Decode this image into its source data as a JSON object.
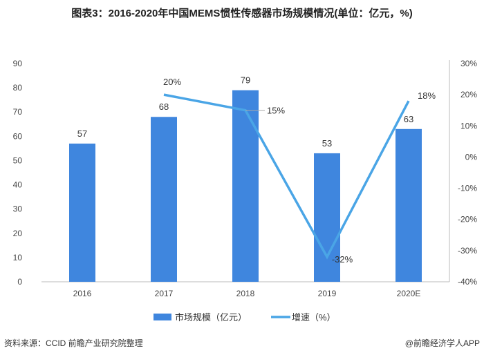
{
  "title": "图表3：2016-2020年中国MEMS惯性传感器市场规模情况(单位：亿元，%)",
  "source": "资料来源：CCID 前瞻产业研究院整理",
  "credit": "@前瞻经济学人APP",
  "colors": {
    "bar": "#3f86de",
    "line": "#4aa5e6"
  },
  "chart_data": {
    "type": "bar+line",
    "categories": [
      "2016",
      "2017",
      "2018",
      "2019",
      "2020E"
    ],
    "series": [
      {
        "name": "市场规模（亿元）",
        "type": "bar",
        "axis": "left",
        "values": [
          57,
          68,
          79,
          53,
          63
        ],
        "labels": [
          "57",
          "68",
          "79",
          "53",
          "63"
        ]
      },
      {
        "name": "增速（%）",
        "type": "line",
        "axis": "right",
        "values": [
          null,
          20,
          15,
          -32,
          18
        ],
        "labels": [
          "",
          "20%",
          "15%",
          "-32%",
          "18%"
        ]
      }
    ],
    "left_axis": {
      "range": [
        0,
        90
      ],
      "ticks": [
        "0",
        "10",
        "20",
        "30",
        "40",
        "50",
        "60",
        "70",
        "80",
        "90"
      ]
    },
    "right_axis": {
      "range": [
        -40,
        30
      ],
      "ticks": [
        "-40%",
        "-30%",
        "-20%",
        "-10%",
        "0%",
        "10%",
        "20%",
        "30%"
      ]
    },
    "legend": "bottom",
    "grid": false
  }
}
